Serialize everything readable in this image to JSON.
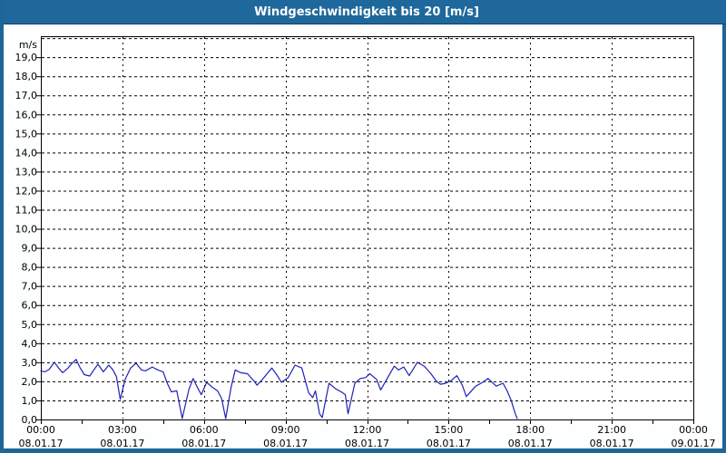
{
  "window": {
    "title": "Windgeschwindigkeit bis 20 [m/s]"
  },
  "colors": {
    "titlebar_bg": "#1E689C",
    "titlebar_text": "#FFFFFF",
    "frame_border": "#1E6598",
    "page_bg": "#FDFEFE",
    "plot_bg": "#FFFFFF",
    "plot_border": "#000000",
    "gridline": "#000000",
    "axis_text": "#000000",
    "series_line": "#2020B8"
  },
  "chart_data": {
    "type": "line",
    "title": "Windgeschwindigkeit bis 20 [m/s]",
    "ylabel": "m/s",
    "xlabel": "",
    "grid": true,
    "legend": false,
    "y_axis": {
      "min": 0,
      "max": 20.1,
      "grid_step": 1.0,
      "unit_label": "m/s",
      "tick_labels": [
        "0,0",
        "1,0",
        "2,0",
        "3,0",
        "4,0",
        "5,0",
        "6,0",
        "7,0",
        "8,0",
        "9,0",
        "10,0",
        "11,0",
        "12,0",
        "13,0",
        "14,0",
        "15,0",
        "16,0",
        "17,0",
        "18,0",
        "19,0"
      ]
    },
    "x_axis": {
      "min_hours": 0,
      "max_hours": 24,
      "major_tick_hours": 3,
      "minor_tick_hours": 1.5,
      "ticks": [
        {
          "time": "00:00",
          "date": "08.01.17"
        },
        {
          "time": "03:00",
          "date": "08.01.17"
        },
        {
          "time": "06:00",
          "date": "08.01.17"
        },
        {
          "time": "09:00",
          "date": "08.01.17"
        },
        {
          "time": "12:00",
          "date": "08.01.17"
        },
        {
          "time": "15:00",
          "date": "08.01.17"
        },
        {
          "time": "18:00",
          "date": "08.01.17"
        },
        {
          "time": "21:00",
          "date": "08.01.17"
        },
        {
          "time": "00:00",
          "date": "09.01.17"
        }
      ]
    },
    "series": [
      {
        "name": "Windgeschwindigkeit",
        "color": "#2020B8",
        "points": [
          [
            0,
            2.55
          ],
          [
            0.15,
            2.5
          ],
          [
            0.3,
            2.62
          ],
          [
            0.5,
            3.0
          ],
          [
            0.65,
            2.7
          ],
          [
            0.8,
            2.45
          ],
          [
            1.0,
            2.7
          ],
          [
            1.15,
            2.95
          ],
          [
            1.3,
            3.15
          ],
          [
            1.45,
            2.7
          ],
          [
            1.6,
            2.35
          ],
          [
            1.8,
            2.28
          ],
          [
            1.95,
            2.6
          ],
          [
            2.1,
            2.9
          ],
          [
            2.3,
            2.5
          ],
          [
            2.5,
            2.85
          ],
          [
            2.65,
            2.6
          ],
          [
            2.78,
            2.25
          ],
          [
            2.92,
            1.05
          ],
          [
            3.1,
            2.1
          ],
          [
            3.3,
            2.7
          ],
          [
            3.5,
            2.95
          ],
          [
            3.7,
            2.6
          ],
          [
            3.85,
            2.55
          ],
          [
            4.1,
            2.75
          ],
          [
            4.3,
            2.6
          ],
          [
            4.5,
            2.5
          ],
          [
            4.65,
            1.9
          ],
          [
            4.8,
            1.45
          ],
          [
            5.0,
            1.5
          ],
          [
            5.2,
            0.05
          ],
          [
            5.45,
            1.6
          ],
          [
            5.6,
            2.15
          ],
          [
            5.75,
            1.7
          ],
          [
            5.9,
            1.3
          ],
          [
            6.1,
            1.95
          ],
          [
            6.3,
            1.7
          ],
          [
            6.5,
            1.5
          ],
          [
            6.65,
            1.1
          ],
          [
            6.8,
            0.05
          ],
          [
            7.0,
            1.7
          ],
          [
            7.15,
            2.6
          ],
          [
            7.35,
            2.45
          ],
          [
            7.6,
            2.4
          ],
          [
            7.85,
            2.0
          ],
          [
            7.95,
            1.8
          ],
          [
            8.15,
            2.1
          ],
          [
            8.35,
            2.45
          ],
          [
            8.5,
            2.7
          ],
          [
            8.7,
            2.3
          ],
          [
            8.85,
            1.95
          ],
          [
            9.1,
            2.2
          ],
          [
            9.35,
            2.85
          ],
          [
            9.6,
            2.7
          ],
          [
            9.85,
            1.4
          ],
          [
            10.0,
            1.15
          ],
          [
            10.1,
            1.5
          ],
          [
            10.25,
            0.3
          ],
          [
            10.35,
            0.1
          ],
          [
            10.5,
            1.2
          ],
          [
            10.6,
            1.9
          ],
          [
            10.85,
            1.6
          ],
          [
            11.05,
            1.45
          ],
          [
            11.2,
            1.3
          ],
          [
            11.3,
            0.3
          ],
          [
            11.55,
            1.9
          ],
          [
            11.75,
            2.15
          ],
          [
            11.95,
            2.2
          ],
          [
            12.1,
            2.4
          ],
          [
            12.35,
            2.1
          ],
          [
            12.5,
            1.55
          ],
          [
            12.8,
            2.3
          ],
          [
            13.0,
            2.8
          ],
          [
            13.15,
            2.6
          ],
          [
            13.35,
            2.75
          ],
          [
            13.55,
            2.3
          ],
          [
            13.85,
            3.0
          ],
          [
            14.1,
            2.8
          ],
          [
            14.35,
            2.4
          ],
          [
            14.55,
            2.0
          ],
          [
            14.7,
            1.85
          ],
          [
            14.9,
            1.9
          ],
          [
            15.1,
            2.05
          ],
          [
            15.3,
            2.3
          ],
          [
            15.5,
            1.8
          ],
          [
            15.65,
            1.2
          ],
          [
            16.0,
            1.75
          ],
          [
            16.25,
            1.95
          ],
          [
            16.45,
            2.15
          ],
          [
            16.75,
            1.75
          ],
          [
            17.0,
            1.9
          ],
          [
            17.15,
            1.5
          ],
          [
            17.3,
            1.0
          ],
          [
            17.45,
            0.3
          ],
          [
            17.52,
            0.05
          ]
        ]
      }
    ]
  }
}
